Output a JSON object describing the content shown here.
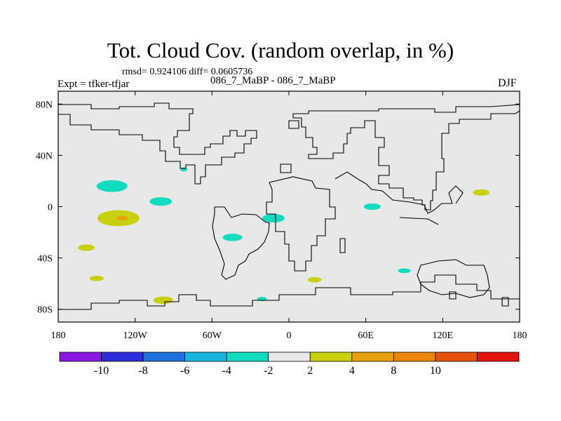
{
  "title": "Tot. Cloud Cov. (random overlap, in %)",
  "stats": "rmsd= 0.924106 diff= 0.0605736",
  "experiment": "Expt = tfker-tfjar",
  "cases": "086_7_MaBP - 086_7_MaBP",
  "season": "DJF",
  "map": {
    "projection": "cylindrical-equidistant",
    "lon_range": [
      -180,
      180
    ],
    "lat_range": [
      -90,
      90
    ],
    "x_ticks": [
      {
        "lon": -180,
        "label": "180"
      },
      {
        "lon": -120,
        "label": "120W"
      },
      {
        "lon": -60,
        "label": "60W"
      },
      {
        "lon": 0,
        "label": "0"
      },
      {
        "lon": 60,
        "label": "60E"
      },
      {
        "lon": 120,
        "label": "120E"
      },
      {
        "lon": 180,
        "label": "180"
      }
    ],
    "y_ticks": [
      {
        "lat": 80,
        "label": "80N"
      },
      {
        "lat": 40,
        "label": "40N"
      },
      {
        "lat": 0,
        "label": "0"
      },
      {
        "lat": -40,
        "label": "40S"
      },
      {
        "lat": -80,
        "label": "80S"
      }
    ],
    "background_color": "#e8e8e8",
    "coastline_color": "#000000"
  },
  "colorbar": {
    "colors": [
      "#8a18e0",
      "#2d2ddb",
      "#1f72dd",
      "#18b4e0",
      "#12dcc0",
      "#e8e8e8",
      "#c9d10e",
      "#e8a10c",
      "#e9860c",
      "#e8510c",
      "#e51212"
    ],
    "labels": [
      "-10",
      "-8",
      "-6",
      "-4",
      "-2",
      "2",
      "4",
      "8",
      "10"
    ]
  },
  "anomalies": [
    {
      "lon": -138,
      "lat": 16,
      "level": -3,
      "color": "#12dcc0"
    },
    {
      "lon": -100,
      "lat": 4,
      "level": -3,
      "color": "#12dcc0"
    },
    {
      "lon": -133,
      "lat": -9,
      "level": 3,
      "color": "#c9d10e"
    },
    {
      "lon": -130,
      "lat": -9,
      "level": 5,
      "color": "#e8a10c"
    },
    {
      "lon": -158,
      "lat": -32,
      "level": 3,
      "color": "#c9d10e"
    },
    {
      "lon": -150,
      "lat": -56,
      "level": 3,
      "color": "#c9d10e"
    },
    {
      "lon": -98,
      "lat": -73,
      "level": 3,
      "color": "#c9d10e"
    },
    {
      "lon": -44,
      "lat": -24,
      "level": -3,
      "color": "#12dcc0"
    },
    {
      "lon": -12,
      "lat": -9,
      "level": -3,
      "color": "#12dcc0"
    },
    {
      "lon": 65,
      "lat": 0,
      "level": -3,
      "color": "#12dcc0"
    },
    {
      "lon": 90,
      "lat": -50,
      "level": -3,
      "color": "#12dcc0"
    },
    {
      "lon": 150,
      "lat": 11,
      "level": 3,
      "color": "#c9d10e"
    },
    {
      "lon": 20,
      "lat": -57,
      "level": 3,
      "color": "#c9d10e"
    },
    {
      "lon": -21,
      "lat": -72,
      "level": -3,
      "color": "#12dcc0"
    },
    {
      "lon": -82,
      "lat": 29,
      "level": -3,
      "color": "#12dcc0"
    }
  ]
}
